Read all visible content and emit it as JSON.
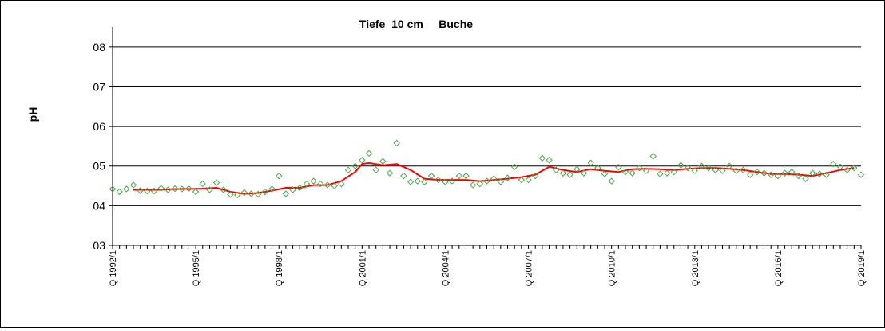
{
  "chart_data": {
    "type": "line",
    "title": "Tiefe  10 cm     Buche",
    "xlabel": "",
    "ylabel": "pH",
    "ylim": [
      3,
      8.5
    ],
    "yticks": [
      {
        "value": 3,
        "label": "03"
      },
      {
        "value": 4,
        "label": "04"
      },
      {
        "value": 5,
        "label": "05"
      },
      {
        "value": 6,
        "label": "06"
      },
      {
        "value": 7,
        "label": "07"
      },
      {
        "value": 8,
        "label": "08"
      }
    ],
    "xticks": [
      {
        "value": 1992.0,
        "label": "Q 1992/1"
      },
      {
        "value": 1995.0,
        "label": "Q 1995/1"
      },
      {
        "value": 1998.0,
        "label": "Q 1998/1"
      },
      {
        "value": 2001.0,
        "label": "Q 2001/1"
      },
      {
        "value": 2004.0,
        "label": "Q 2004/1"
      },
      {
        "value": 2007.0,
        "label": "Q 2007/1"
      },
      {
        "value": 2010.0,
        "label": "Q 2010/1"
      },
      {
        "value": 2013.0,
        "label": "Q 2013/1"
      },
      {
        "value": 2016.0,
        "label": "Q 2016/1"
      },
      {
        "value": 2019.0,
        "label": "Q 2019/1"
      }
    ],
    "xlim": [
      1992.0,
      2019.0
    ],
    "grid": "horizontal",
    "colors": {
      "points": "#4aa84a",
      "trend": "#ff0000",
      "grid": "#000000"
    },
    "series": [
      {
        "style": "diamond-markers",
        "points": [
          [
            1992.0,
            4.42
          ],
          [
            1992.25,
            4.35
          ],
          [
            1992.5,
            4.42
          ],
          [
            1992.75,
            4.52
          ],
          [
            1993.0,
            4.38
          ],
          [
            1993.25,
            4.37
          ],
          [
            1993.5,
            4.37
          ],
          [
            1993.75,
            4.44
          ],
          [
            1994.0,
            4.4
          ],
          [
            1994.25,
            4.43
          ],
          [
            1994.5,
            4.42
          ],
          [
            1994.75,
            4.43
          ],
          [
            1995.0,
            4.35
          ],
          [
            1995.25,
            4.55
          ],
          [
            1995.5,
            4.4
          ],
          [
            1995.75,
            4.58
          ],
          [
            1996.0,
            4.4
          ],
          [
            1996.25,
            4.28
          ],
          [
            1996.5,
            4.27
          ],
          [
            1996.75,
            4.33
          ],
          [
            1997.0,
            4.3
          ],
          [
            1997.25,
            4.29
          ],
          [
            1997.5,
            4.35
          ],
          [
            1997.75,
            4.42
          ],
          [
            1998.0,
            4.75
          ],
          [
            1998.25,
            4.3
          ],
          [
            1998.5,
            4.4
          ],
          [
            1998.75,
            4.45
          ],
          [
            1999.0,
            4.55
          ],
          [
            1999.25,
            4.62
          ],
          [
            1999.5,
            4.55
          ],
          [
            1999.75,
            4.52
          ],
          [
            2000.0,
            4.5
          ],
          [
            2000.25,
            4.55
          ],
          [
            2000.5,
            4.9
          ],
          [
            2000.75,
            5.0
          ],
          [
            2001.0,
            5.15
          ],
          [
            2001.25,
            5.32
          ],
          [
            2001.5,
            4.9
          ],
          [
            2001.75,
            5.12
          ],
          [
            2002.0,
            4.82
          ],
          [
            2002.25,
            5.58
          ],
          [
            2002.5,
            4.75
          ],
          [
            2002.75,
            4.6
          ],
          [
            2003.0,
            4.62
          ],
          [
            2003.25,
            4.6
          ],
          [
            2003.5,
            4.75
          ],
          [
            2003.75,
            4.65
          ],
          [
            2004.0,
            4.6
          ],
          [
            2004.25,
            4.62
          ],
          [
            2004.5,
            4.75
          ],
          [
            2004.75,
            4.75
          ],
          [
            2005.0,
            4.52
          ],
          [
            2005.25,
            4.55
          ],
          [
            2005.5,
            4.62
          ],
          [
            2005.75,
            4.68
          ],
          [
            2006.0,
            4.6
          ],
          [
            2006.25,
            4.7
          ],
          [
            2006.5,
            4.98
          ],
          [
            2006.75,
            4.65
          ],
          [
            2007.0,
            4.65
          ],
          [
            2007.25,
            4.75
          ],
          [
            2007.5,
            5.2
          ],
          [
            2007.75,
            5.15
          ],
          [
            2008.0,
            4.9
          ],
          [
            2008.25,
            4.82
          ],
          [
            2008.5,
            4.78
          ],
          [
            2008.75,
            4.92
          ],
          [
            2009.0,
            4.82
          ],
          [
            2009.25,
            5.08
          ],
          [
            2009.5,
            4.95
          ],
          [
            2009.75,
            4.8
          ],
          [
            2010.0,
            4.62
          ],
          [
            2010.25,
            4.97
          ],
          [
            2010.5,
            4.85
          ],
          [
            2010.75,
            4.82
          ],
          [
            2011.0,
            4.95
          ],
          [
            2011.25,
            4.88
          ],
          [
            2011.5,
            5.25
          ],
          [
            2011.75,
            4.8
          ],
          [
            2012.0,
            4.82
          ],
          [
            2012.25,
            4.85
          ],
          [
            2012.5,
            5.02
          ],
          [
            2012.75,
            4.95
          ],
          [
            2013.0,
            4.88
          ],
          [
            2013.25,
            5.0
          ],
          [
            2013.5,
            4.95
          ],
          [
            2013.75,
            4.9
          ],
          [
            2014.0,
            4.88
          ],
          [
            2014.25,
            5.0
          ],
          [
            2014.5,
            4.88
          ],
          [
            2014.75,
            4.9
          ],
          [
            2015.0,
            4.78
          ],
          [
            2015.25,
            4.85
          ],
          [
            2015.5,
            4.82
          ],
          [
            2015.75,
            4.78
          ],
          [
            2016.0,
            4.75
          ],
          [
            2016.25,
            4.82
          ],
          [
            2016.5,
            4.85
          ],
          [
            2016.75,
            4.75
          ],
          [
            2017.0,
            4.68
          ],
          [
            2017.25,
            4.82
          ],
          [
            2017.5,
            4.8
          ],
          [
            2017.75,
            4.78
          ],
          [
            2018.0,
            5.05
          ],
          [
            2018.25,
            4.98
          ],
          [
            2018.5,
            4.9
          ],
          [
            2018.75,
            4.95
          ],
          [
            2019.0,
            4.78
          ]
        ]
      },
      {
        "style": "smoothed-line",
        "points": [
          [
            1992.75,
            4.4
          ],
          [
            1993.25,
            4.4
          ],
          [
            1993.75,
            4.4
          ],
          [
            1994.25,
            4.42
          ],
          [
            1994.75,
            4.42
          ],
          [
            1995.25,
            4.43
          ],
          [
            1995.75,
            4.45
          ],
          [
            1996.25,
            4.35
          ],
          [
            1996.75,
            4.3
          ],
          [
            1997.25,
            4.32
          ],
          [
            1997.75,
            4.38
          ],
          [
            1998.25,
            4.45
          ],
          [
            1998.75,
            4.45
          ],
          [
            1999.25,
            4.52
          ],
          [
            1999.75,
            4.52
          ],
          [
            2000.25,
            4.62
          ],
          [
            2000.75,
            4.85
          ],
          [
            2001.0,
            5.05
          ],
          [
            2001.25,
            5.08
          ],
          [
            2001.75,
            5.02
          ],
          [
            2002.25,
            5.05
          ],
          [
            2002.75,
            4.9
          ],
          [
            2003.25,
            4.68
          ],
          [
            2003.75,
            4.65
          ],
          [
            2004.25,
            4.65
          ],
          [
            2004.75,
            4.65
          ],
          [
            2005.25,
            4.62
          ],
          [
            2005.75,
            4.65
          ],
          [
            2006.25,
            4.68
          ],
          [
            2006.75,
            4.72
          ],
          [
            2007.25,
            4.78
          ],
          [
            2007.75,
            4.98
          ],
          [
            2008.25,
            4.9
          ],
          [
            2008.75,
            4.85
          ],
          [
            2009.25,
            4.92
          ],
          [
            2009.75,
            4.88
          ],
          [
            2010.25,
            4.85
          ],
          [
            2010.75,
            4.92
          ],
          [
            2011.25,
            4.93
          ],
          [
            2011.75,
            4.92
          ],
          [
            2012.25,
            4.9
          ],
          [
            2012.75,
            4.93
          ],
          [
            2013.25,
            4.95
          ],
          [
            2013.75,
            4.95
          ],
          [
            2014.25,
            4.93
          ],
          [
            2014.75,
            4.9
          ],
          [
            2015.25,
            4.85
          ],
          [
            2015.75,
            4.8
          ],
          [
            2016.25,
            4.8
          ],
          [
            2016.75,
            4.78
          ],
          [
            2017.25,
            4.75
          ],
          [
            2017.75,
            4.82
          ],
          [
            2018.25,
            4.9
          ],
          [
            2018.75,
            4.95
          ]
        ]
      }
    ]
  }
}
